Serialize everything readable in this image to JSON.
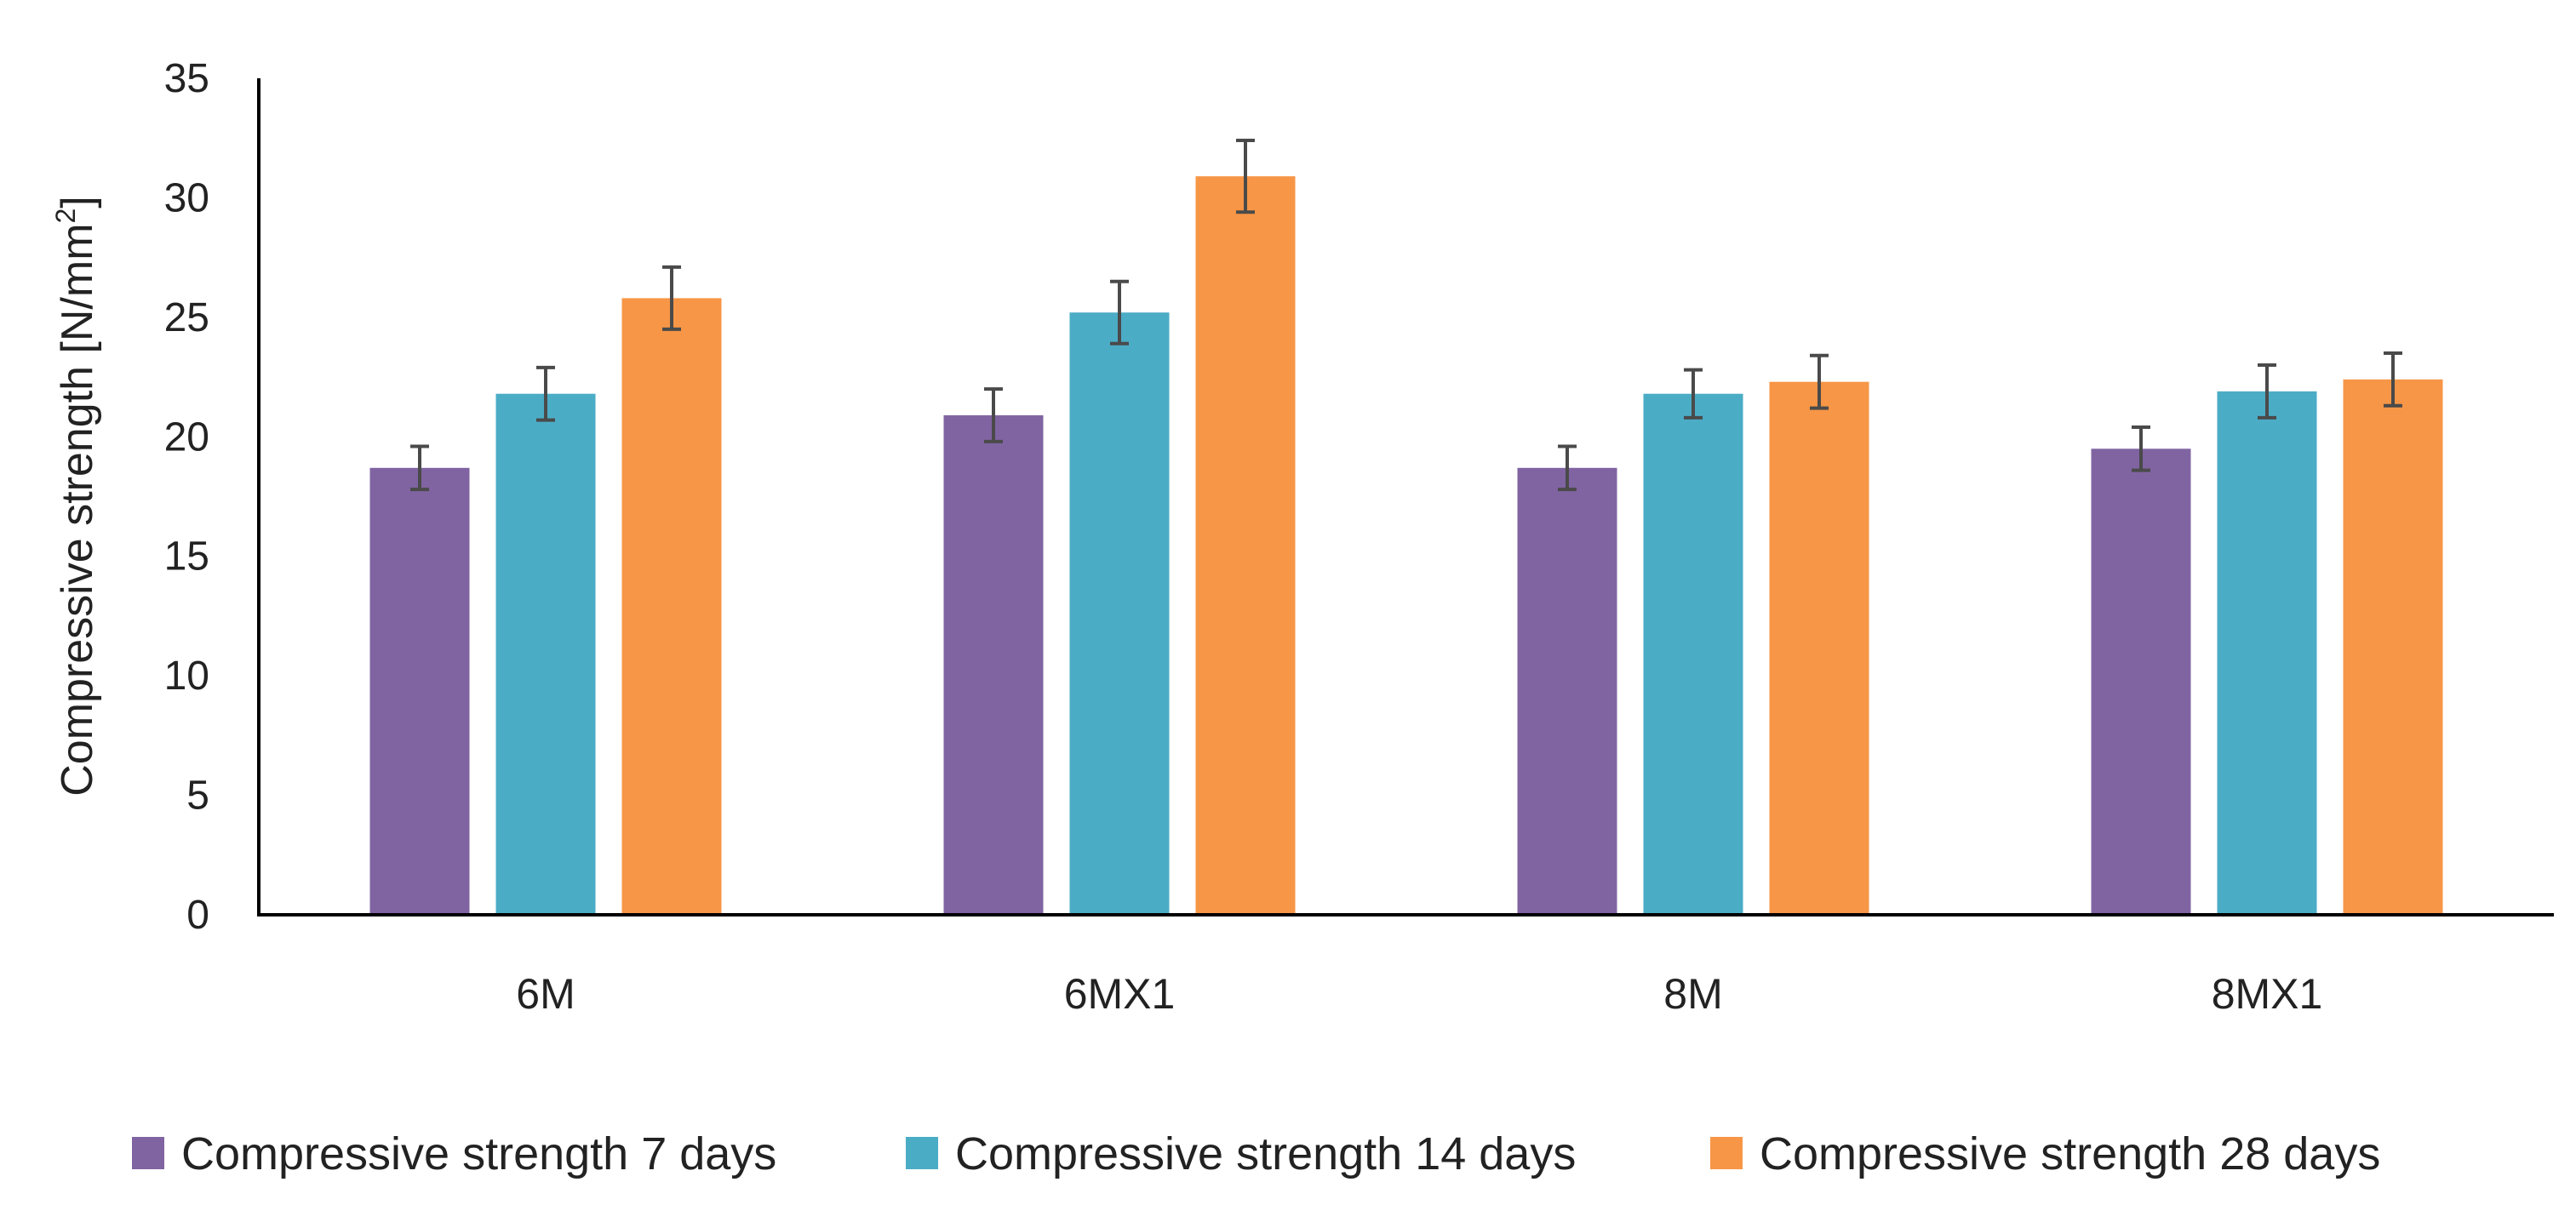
{
  "chart_data": {
    "type": "bar",
    "title": "",
    "xlabel": "",
    "ylabel": {
      "main": "Compressive strength [N/mm",
      "sup": "2",
      "tail": "]"
    },
    "ylim": [
      0,
      35
    ],
    "yticks": [
      0,
      5,
      10,
      15,
      20,
      25,
      30,
      35
    ],
    "grid": false,
    "legend_position": "bottom",
    "categories": [
      "6M",
      "6MX1",
      "8M",
      "8MX1"
    ],
    "series": [
      {
        "name": "Compressive strength 7 days",
        "color": "#8064A2",
        "values": [
          18.7,
          20.9,
          18.7,
          19.5
        ],
        "errors": [
          0.9,
          1.1,
          0.9,
          0.9
        ]
      },
      {
        "name": "Compressive strength 14 days",
        "color": "#4BACC6",
        "values": [
          21.8,
          25.2,
          21.8,
          21.9
        ],
        "errors": [
          1.1,
          1.3,
          1.0,
          1.1
        ]
      },
      {
        "name": "Compressive strength 28 days",
        "color": "#F79646",
        "values": [
          25.8,
          30.9,
          22.3,
          22.4
        ],
        "errors": [
          1.3,
          1.5,
          1.1,
          1.1
        ]
      }
    ]
  }
}
